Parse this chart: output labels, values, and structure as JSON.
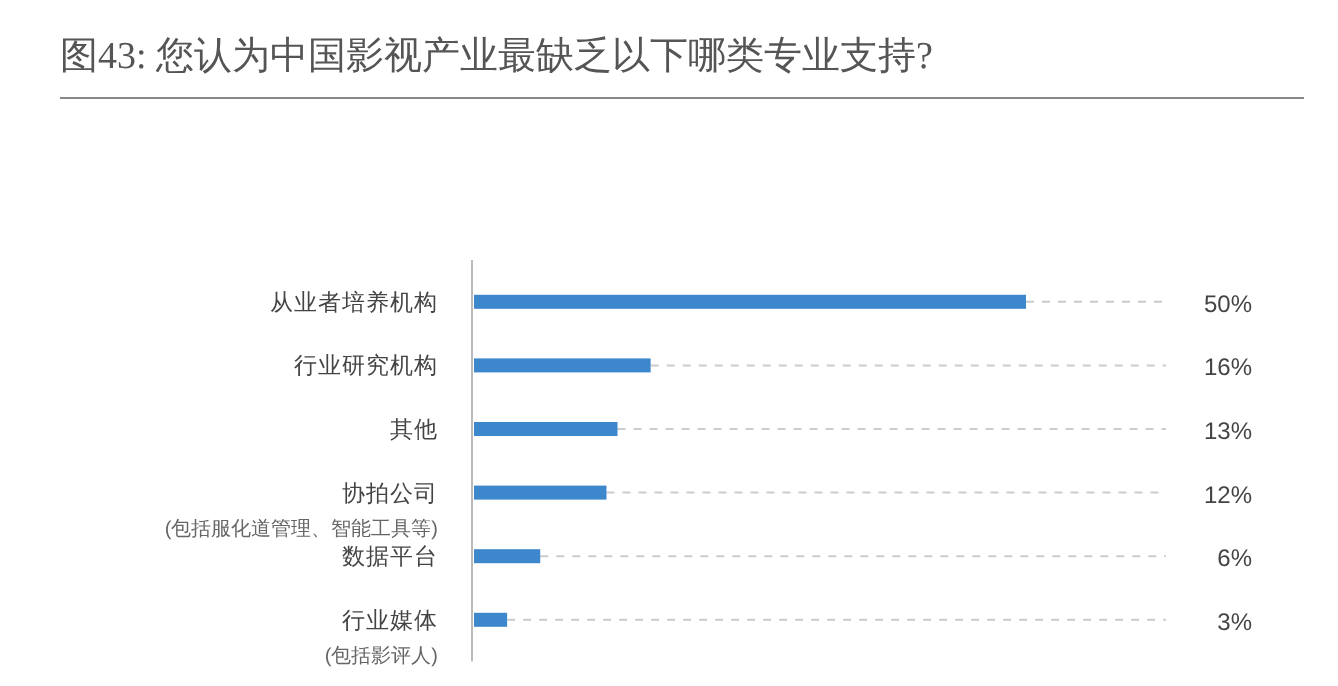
{
  "chart_data": {
    "type": "bar",
    "orientation": "horizontal",
    "title": "图43: 您认为中国影视产业最缺乏以下哪类专业支持?",
    "categories": [
      "从业者培养机构",
      "行业研究机构",
      "其他",
      "协拍公司\n(包括服化道管理、智能工具等)",
      "数据平台",
      "行业媒体\n(包括影评人)"
    ],
    "values": [
      50,
      16,
      13,
      12,
      6,
      3
    ],
    "value_labels": [
      "50%",
      "16%",
      "13%",
      "12%",
      "6%",
      "3%"
    ],
    "color": "#3d88cc"
  }
}
